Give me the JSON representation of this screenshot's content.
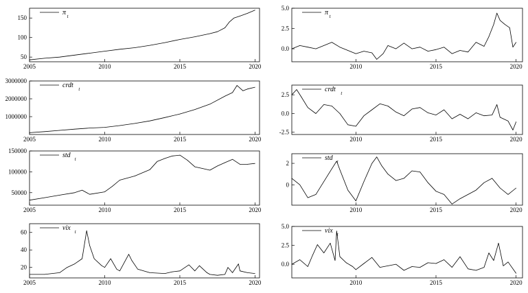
{
  "chart_data": [
    {
      "id": "pi_level",
      "type": "line",
      "legend": {
        "symbol": "π",
        "subscript": "t"
      },
      "xlim": [
        2005,
        2020.3
      ],
      "ylim": [
        38,
        175
      ],
      "xticks": [
        "2005",
        "2010",
        "2015",
        "2020"
      ],
      "yticks": [
        "50",
        "100",
        "150"
      ],
      "x": [
        2005,
        2006,
        2007,
        2008,
        2009,
        2010,
        2011,
        2012,
        2013,
        2014,
        2015,
        2016,
        2017,
        2017.5,
        2018,
        2018.3,
        2018.6,
        2019,
        2019.5,
        2020
      ],
      "values": [
        43,
        47,
        50,
        55,
        60,
        65,
        70,
        74,
        80,
        87,
        95,
        102,
        110,
        115,
        125,
        140,
        150,
        155,
        162,
        170
      ]
    },
    {
      "id": "pi_std",
      "type": "line",
      "legend": {
        "symbol": "π",
        "subscript": "t"
      },
      "xlim": [
        2006,
        2020.4
      ],
      "ylim": [
        -1.6,
        5.0
      ],
      "xticks": [
        "2010",
        "2015",
        "2020"
      ],
      "yticks": [
        "0.0",
        "2.5",
        "5.0"
      ],
      "x": [
        2006,
        2006.5,
        2007,
        2007.5,
        2008,
        2008.5,
        2009,
        2009.5,
        2010,
        2010.5,
        2011,
        2011.3,
        2011.7,
        2012,
        2012.5,
        2013,
        2013.5,
        2014,
        2014.5,
        2015,
        2015.5,
        2016,
        2016.5,
        2017,
        2017.5,
        2018,
        2018.3,
        2018.6,
        2018.8,
        2019,
        2019.3,
        2019.6,
        2019.8,
        2020
      ],
      "values": [
        0.0,
        0.4,
        0.2,
        0.0,
        0.4,
        0.8,
        0.2,
        -0.2,
        -0.6,
        -0.3,
        -0.5,
        -1.3,
        -0.6,
        0.4,
        0.0,
        0.7,
        0.0,
        0.2,
        -0.3,
        -0.1,
        0.2,
        -0.6,
        -0.2,
        -0.4,
        0.8,
        0.3,
        1.5,
        3.0,
        4.4,
        3.5,
        3.0,
        2.6,
        0.2,
        0.8
      ]
    },
    {
      "id": "crdt_level",
      "type": "line",
      "legend": {
        "symbol": "crdt",
        "subscript": "t"
      },
      "xlim": [
        2005,
        2020.3
      ],
      "ylim": [
        0,
        3000000
      ],
      "xticks": [
        "2005",
        "2010",
        "2015",
        "2020"
      ],
      "yticks": [
        "1000000",
        "2000000",
        "3000000"
      ],
      "x": [
        2005,
        2006,
        2007,
        2008,
        2009,
        2010,
        2011,
        2012,
        2013,
        2014,
        2015,
        2016,
        2017,
        2018,
        2018.5,
        2018.8,
        2019.2,
        2019.5,
        2020
      ],
      "values": [
        100000,
        160000,
        230000,
        300000,
        360000,
        400000,
        500000,
        620000,
        760000,
        950000,
        1150000,
        1400000,
        1700000,
        2150000,
        2350000,
        2750000,
        2450000,
        2550000,
        2650000
      ]
    },
    {
      "id": "crdt_std",
      "type": "line",
      "legend": {
        "symbol": "crdt",
        "subscript": "t"
      },
      "xlim": [
        2006,
        2020.4
      ],
      "ylim": [
        -2.8,
        3.8
      ],
      "xticks": [
        "2010",
        "2015",
        "2020"
      ],
      "yticks": [
        "-2.5",
        "0.0",
        "2.5"
      ],
      "x": [
        2006,
        2006.3,
        2006.6,
        2007,
        2007.5,
        2008,
        2008.5,
        2009,
        2009.5,
        2010,
        2010.5,
        2011,
        2011.5,
        2012,
        2012.5,
        2013,
        2013.5,
        2014,
        2014.5,
        2015,
        2015.5,
        2016,
        2016.5,
        2017,
        2017.5,
        2018,
        2018.5,
        2018.8,
        2019,
        2019.5,
        2019.8,
        2020
      ],
      "values": [
        2.5,
        3.2,
        2.2,
        0.8,
        0.0,
        1.2,
        1.0,
        0.0,
        -1.5,
        -1.7,
        -0.3,
        0.5,
        1.3,
        1.0,
        0.2,
        -0.3,
        0.6,
        0.8,
        0.1,
        -0.2,
        0.5,
        -0.7,
        -0.1,
        -0.7,
        0.1,
        -0.3,
        -0.2,
        1.2,
        -0.5,
        -1.0,
        -2.2,
        -1.1
      ]
    },
    {
      "id": "std_level",
      "type": "line",
      "legend": {
        "symbol": "std",
        "subscript": "t"
      },
      "xlim": [
        2005,
        2020.3
      ],
      "ylim": [
        20000,
        150000
      ],
      "xticks": [
        "2005",
        "2010",
        "2015",
        "2020"
      ],
      "yticks": [
        "50000",
        "100000",
        "150000"
      ],
      "x": [
        2005,
        2006,
        2007,
        2008,
        2008.5,
        2009,
        2010,
        2010.5,
        2011,
        2012,
        2013,
        2013.5,
        2014,
        2014.5,
        2015,
        2015.5,
        2016,
        2016.5,
        2017,
        2017.5,
        2018,
        2018.5,
        2019,
        2019.5,
        2020
      ],
      "values": [
        32000,
        38000,
        44000,
        50000,
        56000,
        46000,
        52000,
        65000,
        80000,
        90000,
        105000,
        125000,
        132000,
        138000,
        140000,
        128000,
        112000,
        108000,
        104000,
        114000,
        122000,
        130000,
        118000,
        118000,
        120000
      ]
    },
    {
      "id": "std_std",
      "type": "line",
      "legend": {
        "symbol": "std",
        "subscript": "t"
      },
      "xlim": [
        2006,
        2020.4
      ],
      "ylim": [
        -1.9,
        2.9
      ],
      "xticks": [
        "2010",
        "2015",
        "2020"
      ],
      "yticks": [
        "0",
        "2"
      ],
      "x": [
        2006,
        2006.5,
        2007,
        2007.5,
        2008,
        2008.5,
        2008.8,
        2009,
        2009.5,
        2010,
        2010.5,
        2011,
        2011.3,
        2011.6,
        2012,
        2012.5,
        2013,
        2013.5,
        2014,
        2014.5,
        2015,
        2015.5,
        2016,
        2016.5,
        2017,
        2017.5,
        2018,
        2018.5,
        2019,
        2019.5,
        2020
      ],
      "values": [
        0.6,
        0.0,
        -1.2,
        -0.9,
        0.3,
        1.5,
        2.2,
        1.4,
        -0.5,
        -1.5,
        0.3,
        2.0,
        2.6,
        1.8,
        1.0,
        0.4,
        0.6,
        1.3,
        1.2,
        0.2,
        -0.6,
        -0.9,
        -1.8,
        -1.3,
        -0.9,
        -0.5,
        0.2,
        0.6,
        -0.3,
        -0.9,
        -0.3
      ]
    },
    {
      "id": "vix_level",
      "type": "line",
      "legend": {
        "symbol": "vix",
        "subscript": "t"
      },
      "xlim": [
        2005,
        2020.3
      ],
      "ylim": [
        8,
        70
      ],
      "xticks": [
        "2005",
        "2010",
        "2015",
        "2020"
      ],
      "yticks": [
        "20",
        "40",
        "60"
      ],
      "x": [
        2005,
        2006,
        2007,
        2007.5,
        2008,
        2008.5,
        2008.8,
        2009,
        2009.3,
        2009.8,
        2010,
        2010.4,
        2010.8,
        2011,
        2011.6,
        2011.8,
        2012.2,
        2012.8,
        2013,
        2014,
        2014.5,
        2015,
        2015.6,
        2016,
        2016.3,
        2016.8,
        2017,
        2017.5,
        2018,
        2018.2,
        2018.5,
        2018.9,
        2019,
        2019.5,
        2020
      ],
      "values": [
        12,
        12,
        14,
        20,
        24,
        30,
        62,
        45,
        30,
        22,
        20,
        30,
        18,
        16,
        35,
        28,
        18,
        15,
        14,
        13,
        15,
        16,
        23,
        16,
        22,
        14,
        12,
        11,
        12,
        20,
        14,
        24,
        16,
        14,
        13
      ]
    },
    {
      "id": "vix_std",
      "type": "line",
      "legend": {
        "symbol": "vix",
        "subscript": "t"
      },
      "xlim": [
        2006,
        2020.4
      ],
      "ylim": [
        -1.8,
        5.0
      ],
      "xticks": [
        "2010",
        "2015",
        "2020"
      ],
      "yticks": [
        "0.0",
        "2.5",
        "5.0"
      ],
      "x": [
        2006,
        2006.5,
        2007,
        2007.3,
        2007.6,
        2008,
        2008.4,
        2008.7,
        2008.8,
        2009,
        2009.4,
        2009.8,
        2010,
        2010.5,
        2011,
        2011.5,
        2012,
        2012.5,
        2013,
        2013.5,
        2014,
        2014.5,
        2015,
        2015.5,
        2016,
        2016.5,
        2017,
        2017.5,
        2018,
        2018.3,
        2018.6,
        2018.9,
        2019.2,
        2019.5,
        2020
      ],
      "values": [
        0.0,
        0.6,
        -0.3,
        1.2,
        2.6,
        1.5,
        2.8,
        0.5,
        4.4,
        1.0,
        0.2,
        -0.3,
        -0.7,
        0.1,
        0.9,
        -0.4,
        -0.2,
        0.0,
        -0.8,
        -0.3,
        -0.4,
        0.2,
        0.1,
        0.6,
        -0.4,
        1.0,
        -0.6,
        -0.8,
        -0.4,
        1.5,
        0.5,
        2.8,
        -0.2,
        0.3,
        -1.2
      ]
    }
  ]
}
